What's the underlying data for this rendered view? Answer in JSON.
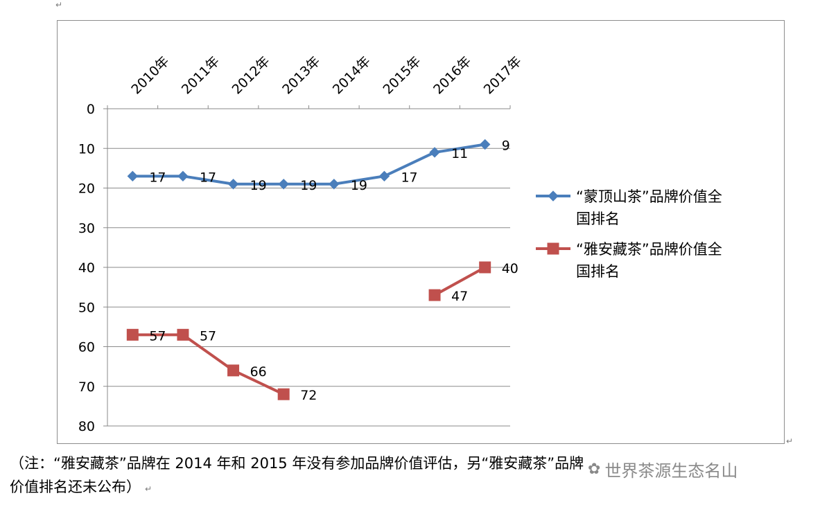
{
  "chart_data": {
    "type": "line",
    "categories": [
      "2010年",
      "2011年",
      "2012年",
      "2013年",
      "2014年",
      "2015年",
      "2016年",
      "2017年"
    ],
    "yaxis": {
      "reversed": true,
      "ylim": [
        0,
        80
      ],
      "ticks": [
        0,
        10,
        20,
        30,
        40,
        50,
        60,
        70,
        80
      ]
    },
    "grid": true,
    "legend_position": "right",
    "series": [
      {
        "name": "“蒙顶山茶”品牌价值全国排名",
        "legend_lines": [
          "“蒙顶山茶”品牌价值全",
          "国排名"
        ],
        "marker": "diamond",
        "color": "#4a7ebb",
        "values": [
          17,
          17,
          19,
          19,
          19,
          17,
          11,
          9
        ]
      },
      {
        "name": "“雅安藏茶”品牌价值全国排名",
        "legend_lines": [
          "“雅安藏茶”品牌价值全",
          "国排名"
        ],
        "marker": "square",
        "color": "#c0504d",
        "values": [
          57,
          57,
          66,
          72,
          null,
          null,
          47,
          40
        ]
      }
    ]
  },
  "note": {
    "line1": "（注：“雅安藏茶”品牌在 2014 年和 2015 年没有参加品牌价值评估，另“雅安藏茶”品牌",
    "line2": "价值排名还未公布）"
  },
  "paragraph_mark": "↵",
  "watermark": {
    "icon": "wechat-icon",
    "text": "世界茶源生态名山"
  }
}
